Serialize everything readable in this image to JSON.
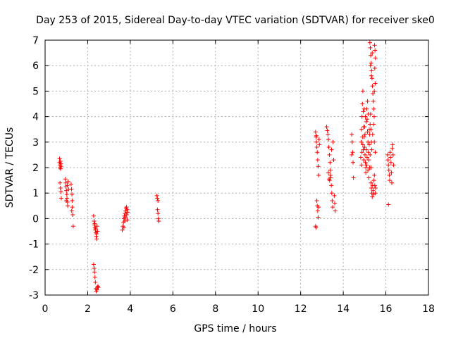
{
  "chart_data": {
    "type": "scatter",
    "title": "Day 253 of 2015, Sidereal Day-to-day VTEC variation (SDTVAR) for receiver ske0",
    "xlabel": "GPS time / hours",
    "ylabel": "SDTVAR / TECUs",
    "xlim": [
      0,
      18
    ],
    "ylim": [
      -3,
      7
    ],
    "xticks": [
      0,
      2,
      4,
      6,
      8,
      10,
      12,
      14,
      16,
      18
    ],
    "yticks": [
      -3,
      -2,
      -1,
      0,
      1,
      2,
      3,
      4,
      5,
      6,
      7
    ],
    "grid": true,
    "marker": "+",
    "colors": {
      "series": "#ff0000",
      "grid": "#b0b0b0",
      "axes": "#000000"
    },
    "series": [
      {
        "name": "SDTVAR",
        "points": [
          [
            0.68,
            2.35
          ],
          [
            0.68,
            2.2
          ],
          [
            0.7,
            2.1
          ],
          [
            0.7,
            2.0
          ],
          [
            0.72,
            2.25
          ],
          [
            0.73,
            1.95
          ],
          [
            0.74,
            2.15
          ],
          [
            0.75,
            2.05
          ],
          [
            0.7,
            1.4
          ],
          [
            0.72,
            1.2
          ],
          [
            0.74,
            1.05
          ],
          [
            0.76,
            0.8
          ],
          [
            0.95,
            1.55
          ],
          [
            0.97,
            1.4
          ],
          [
            0.98,
            1.25
          ],
          [
            1.0,
            1.1
          ],
          [
            1.02,
            0.95
          ],
          [
            1.03,
            0.8
          ],
          [
            1.05,
            0.65
          ],
          [
            1.06,
            0.5
          ],
          [
            0.99,
            0.7
          ],
          [
            1.04,
            1.3
          ],
          [
            1.08,
            1.45
          ],
          [
            1.1,
            1.15
          ],
          [
            1.22,
            1.35
          ],
          [
            1.24,
            1.15
          ],
          [
            1.26,
            0.95
          ],
          [
            1.27,
            0.7
          ],
          [
            1.28,
            0.45
          ],
          [
            1.3,
            0.15
          ],
          [
            1.32,
            -0.3
          ],
          [
            1.25,
            0.3
          ],
          [
            2.28,
            0.1
          ],
          [
            2.3,
            -0.1
          ],
          [
            2.32,
            -0.25
          ],
          [
            2.34,
            -0.35
          ],
          [
            2.36,
            -0.45
          ],
          [
            2.38,
            -0.55
          ],
          [
            2.4,
            -0.7
          ],
          [
            2.42,
            -0.8
          ],
          [
            2.33,
            -0.2
          ],
          [
            2.37,
            -0.4
          ],
          [
            2.41,
            -0.6
          ],
          [
            2.44,
            -0.3
          ],
          [
            2.46,
            -0.5
          ],
          [
            2.28,
            -1.8
          ],
          [
            2.3,
            -1.95
          ],
          [
            2.32,
            -2.1
          ],
          [
            2.34,
            -2.3
          ],
          [
            2.36,
            -2.5
          ],
          [
            2.38,
            -2.75
          ],
          [
            2.4,
            -2.85
          ],
          [
            2.44,
            -2.8
          ],
          [
            2.46,
            -2.7
          ],
          [
            2.48,
            -2.65
          ],
          [
            2.5,
            -2.7
          ],
          [
            3.62,
            -0.45
          ],
          [
            3.65,
            -0.3
          ],
          [
            3.68,
            -0.15
          ],
          [
            3.7,
            0.0
          ],
          [
            3.72,
            0.1
          ],
          [
            3.75,
            0.2
          ],
          [
            3.78,
            0.3
          ],
          [
            3.8,
            0.4
          ],
          [
            3.82,
            0.45
          ],
          [
            3.85,
            0.35
          ],
          [
            3.88,
            0.25
          ],
          [
            3.74,
            -0.1
          ],
          [
            3.77,
            0.05
          ],
          [
            3.83,
            0.15
          ],
          [
            3.86,
            -0.05
          ],
          [
            3.7,
            -0.35
          ],
          [
            5.25,
            0.9
          ],
          [
            5.27,
            0.8
          ],
          [
            5.3,
            0.7
          ],
          [
            5.28,
            0.35
          ],
          [
            5.3,
            0.2
          ],
          [
            5.32,
            0.0
          ],
          [
            5.34,
            -0.1
          ],
          [
            12.7,
            3.4
          ],
          [
            12.72,
            3.2
          ],
          [
            12.74,
            3.0
          ],
          [
            12.76,
            2.8
          ],
          [
            12.78,
            2.6
          ],
          [
            12.8,
            2.3
          ],
          [
            12.82,
            2.05
          ],
          [
            12.84,
            1.7
          ],
          [
            12.76,
            0.7
          ],
          [
            12.78,
            0.5
          ],
          [
            12.8,
            0.3
          ],
          [
            12.82,
            0.05
          ],
          [
            12.7,
            -0.3
          ],
          [
            12.72,
            -0.35
          ],
          [
            12.86,
            3.1
          ],
          [
            12.88,
            2.9
          ],
          [
            12.84,
            0.45
          ],
          [
            12.74,
            3.25
          ],
          [
            13.22,
            3.6
          ],
          [
            13.25,
            3.45
          ],
          [
            13.28,
            3.3
          ],
          [
            13.3,
            3.1
          ],
          [
            13.32,
            2.8
          ],
          [
            13.35,
            2.5
          ],
          [
            13.38,
            2.2
          ],
          [
            13.4,
            1.9
          ],
          [
            13.42,
            1.6
          ],
          [
            13.44,
            1.3
          ],
          [
            13.46,
            1.0
          ],
          [
            13.48,
            0.7
          ],
          [
            13.5,
            0.45
          ],
          [
            13.36,
            1.5
          ],
          [
            13.4,
            1.7
          ],
          [
            13.3,
            1.8
          ],
          [
            13.33,
            1.55
          ],
          [
            13.45,
            2.7
          ],
          [
            13.52,
            3.0
          ],
          [
            13.55,
            2.3
          ],
          [
            13.58,
            0.9
          ],
          [
            13.6,
            0.6
          ],
          [
            13.62,
            0.3
          ],
          [
            14.4,
            3.3
          ],
          [
            14.42,
            3.0
          ],
          [
            14.44,
            2.6
          ],
          [
            14.46,
            2.2
          ],
          [
            14.48,
            1.6
          ],
          [
            14.4,
            2.5
          ],
          [
            14.82,
            2.4
          ],
          [
            14.84,
            3.0
          ],
          [
            14.86,
            3.5
          ],
          [
            14.88,
            4.0
          ],
          [
            14.9,
            4.5
          ],
          [
            14.92,
            5.0
          ],
          [
            14.94,
            4.2
          ],
          [
            14.96,
            3.6
          ],
          [
            14.98,
            3.2
          ],
          [
            15.0,
            2.8
          ],
          [
            15.02,
            2.5
          ],
          [
            15.04,
            2.2
          ],
          [
            15.06,
            2.0
          ],
          [
            15.08,
            3.8
          ],
          [
            15.1,
            4.3
          ],
          [
            15.12,
            3.9
          ],
          [
            15.14,
            3.4
          ],
          [
            15.16,
            3.0
          ],
          [
            15.18,
            2.6
          ],
          [
            15.2,
            2.3
          ],
          [
            15.22,
            2.9
          ],
          [
            15.24,
            3.3
          ],
          [
            15.26,
            3.7
          ],
          [
            15.28,
            4.1
          ],
          [
            15.3,
            3.5
          ],
          [
            15.32,
            3.0
          ],
          [
            14.88,
            2.6
          ],
          [
            14.92,
            2.9
          ],
          [
            14.96,
            2.3
          ],
          [
            15.0,
            3.6
          ],
          [
            15.04,
            4.0
          ],
          [
            15.08,
            2.7
          ],
          [
            15.12,
            2.4
          ],
          [
            15.16,
            1.9
          ],
          [
            15.2,
            1.6
          ],
          [
            15.24,
            2.0
          ],
          [
            14.86,
            2.1
          ],
          [
            14.9,
            3.2
          ],
          [
            14.94,
            2.7
          ],
          [
            14.98,
            4.3
          ],
          [
            15.02,
            3.3
          ],
          [
            15.06,
            1.8
          ],
          [
            15.1,
            2.1
          ],
          [
            15.14,
            4.6
          ],
          [
            15.18,
            4.1
          ],
          [
            15.22,
            3.5
          ],
          [
            15.26,
            2.5
          ],
          [
            15.3,
            2.0
          ],
          [
            15.34,
            2.7
          ],
          [
            15.38,
            3.3
          ],
          [
            15.42,
            3.7
          ],
          [
            15.46,
            3.0
          ],
          [
            15.5,
            2.6
          ],
          [
            15.25,
            6.9
          ],
          [
            15.27,
            6.7
          ],
          [
            15.29,
            6.4
          ],
          [
            15.31,
            6.1
          ],
          [
            15.33,
            5.8
          ],
          [
            15.35,
            5.5
          ],
          [
            15.37,
            5.2
          ],
          [
            15.39,
            4.9
          ],
          [
            15.41,
            4.6
          ],
          [
            15.43,
            4.3
          ],
          [
            15.45,
            4.0
          ],
          [
            15.47,
            6.8
          ],
          [
            15.49,
            6.6
          ],
          [
            15.51,
            6.3
          ],
          [
            15.48,
            5.9
          ],
          [
            15.5,
            5.3
          ],
          [
            15.46,
            5.0
          ],
          [
            15.28,
            6.0
          ],
          [
            15.32,
            5.6
          ],
          [
            15.36,
            6.5
          ],
          [
            15.3,
            1.4
          ],
          [
            15.32,
            1.2
          ],
          [
            15.34,
            1.0
          ],
          [
            15.36,
            0.85
          ],
          [
            15.38,
            1.3
          ],
          [
            15.4,
            1.1
          ],
          [
            15.42,
            0.95
          ],
          [
            15.44,
            1.5
          ],
          [
            15.46,
            1.7
          ],
          [
            15.48,
            1.3
          ],
          [
            15.5,
            1.0
          ],
          [
            15.52,
            1.2
          ],
          [
            16.08,
            2.5
          ],
          [
            16.1,
            2.3
          ],
          [
            16.12,
            2.1
          ],
          [
            16.14,
            1.9
          ],
          [
            16.16,
            1.7
          ],
          [
            16.18,
            1.5
          ],
          [
            16.12,
            0.55
          ],
          [
            16.2,
            2.6
          ],
          [
            16.22,
            2.4
          ],
          [
            16.24,
            2.2
          ],
          [
            16.26,
            1.8
          ],
          [
            16.28,
            1.4
          ],
          [
            16.3,
            2.75
          ],
          [
            16.32,
            2.9
          ],
          [
            16.34,
            2.5
          ],
          [
            16.36,
            2.1
          ]
        ]
      }
    ]
  }
}
